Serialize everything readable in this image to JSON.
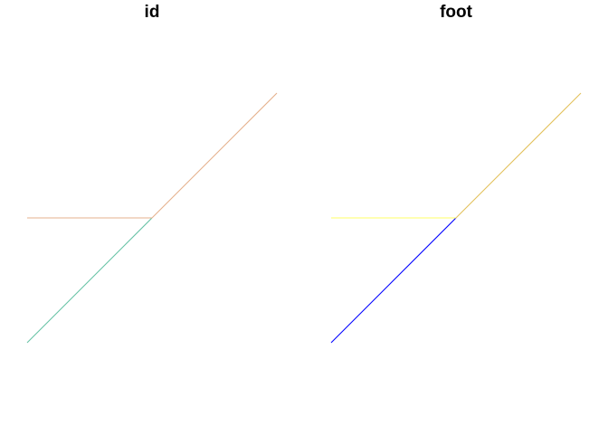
{
  "chart_data": [
    {
      "type": "line",
      "title": "id",
      "xlim": [
        0,
        2
      ],
      "ylim": [
        0,
        2
      ],
      "series": [
        {
          "color": "#66C2A5",
          "x": [
            0,
            1
          ],
          "y": [
            0,
            1
          ]
        },
        {
          "color": "#E5B08C",
          "x": [
            0,
            1
          ],
          "y": [
            1,
            1
          ]
        },
        {
          "color": "#E5B08C",
          "x": [
            1,
            2
          ],
          "y": [
            1,
            2
          ]
        }
      ]
    },
    {
      "type": "line",
      "title": "foot",
      "xlim": [
        0,
        2
      ],
      "ylim": [
        0,
        2
      ],
      "series": [
        {
          "color": "#0000FF",
          "x": [
            0,
            1
          ],
          "y": [
            0,
            1
          ]
        },
        {
          "color": "#FFFF66",
          "x": [
            0,
            1
          ],
          "y": [
            1,
            1
          ]
        },
        {
          "color": "#E3C05A",
          "x": [
            1,
            2
          ],
          "y": [
            1,
            2
          ]
        }
      ]
    }
  ]
}
